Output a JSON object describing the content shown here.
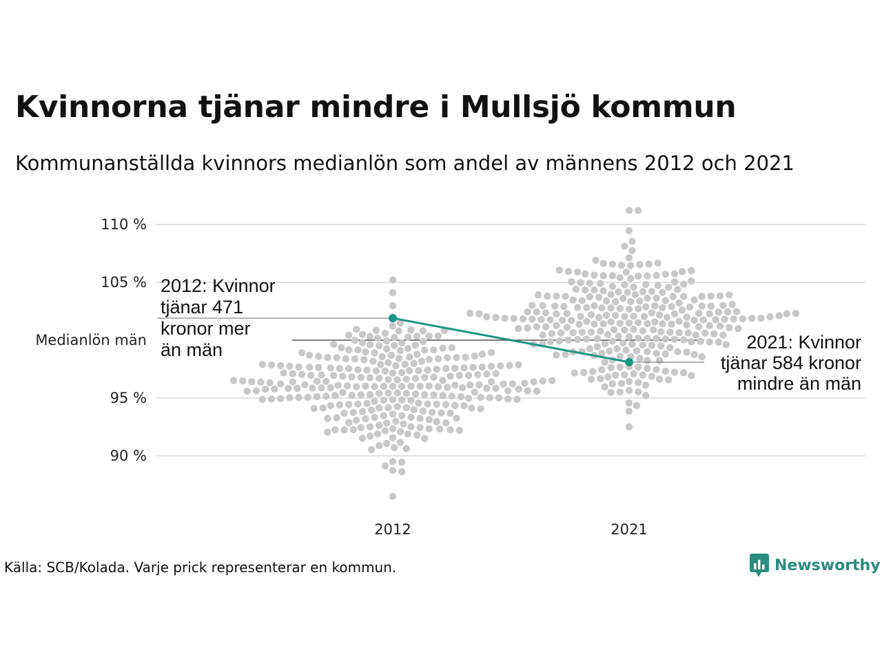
{
  "title": "Kvinnorna tjänar mindre i Mullsjö kommun",
  "subtitle": "Kommunanställda kvinnors medianlön som andel av männens 2012 och 2021",
  "source": "Källa: SCB/Kolada. Varje prick representerar en kommun.",
  "brand": {
    "name": "Newsworthy",
    "icon": "newsworthy-logo-icon",
    "color": "#2a8c7f"
  },
  "colors": {
    "dots": "#c8c8c8",
    "highlight": "#1a9484",
    "grid": "#e2e2e2",
    "reference": "#333333"
  },
  "chart_data": {
    "type": "scatter",
    "subtype": "beeswarm",
    "categories": [
      "2012",
      "2021"
    ],
    "ylabel": "",
    "xlabel": "",
    "ylim": [
      86,
      112
    ],
    "yticks": [
      {
        "value": 90,
        "label": "90 %"
      },
      {
        "value": 95,
        "label": "95 %"
      },
      {
        "value": 100,
        "label": "Medianlön män"
      },
      {
        "value": 105,
        "label": "105 %"
      },
      {
        "value": 110,
        "label": "110 %"
      }
    ],
    "grid": true,
    "reference_line": {
      "value": 100,
      "label": "Medianlön män"
    },
    "distributions": [
      {
        "category": "2012",
        "count": 290,
        "mean": 96.0,
        "sd": 2.6,
        "min": 86.5,
        "max": 105.2,
        "seed": 7
      },
      {
        "category": "2021",
        "count": 290,
        "mean": 101.5,
        "sd": 3.0,
        "min": 92.5,
        "max": 111.2,
        "seed": 13
      }
    ],
    "highlight": {
      "name": "Mullsjö",
      "values": [
        {
          "category": "2012",
          "value": 101.9
        },
        {
          "category": "2021",
          "value": 98.1
        }
      ]
    },
    "annotations": [
      {
        "category": "2012",
        "lines": [
          "2012: Kvinnor",
          "tjänar 471",
          "kronor mer",
          "än män"
        ]
      },
      {
        "category": "2021",
        "lines": [
          "2021: Kvinnor",
          "tjänar 584 kronor",
          "mindre än män"
        ]
      }
    ]
  }
}
